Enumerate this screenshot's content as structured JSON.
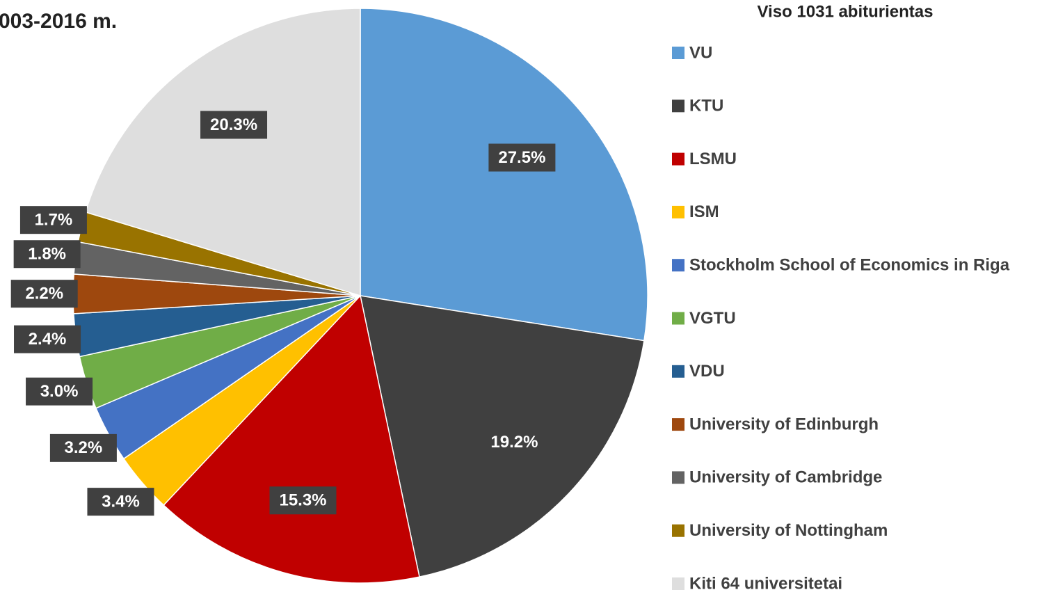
{
  "chart_data": {
    "type": "pie",
    "title": "003-2016 m.",
    "legend_title": "Viso 1031 abiturientas",
    "legend": "right",
    "categories": [
      "VU",
      "KTU",
      "LSMU",
      "ISM",
      "Stockholm School of Economics in Riga",
      "VGTU",
      "VDU",
      "University of Edinburgh",
      "University of Cambridge",
      "University of Nottingham",
      "Kiti 64 universitetai"
    ],
    "values": [
      27.5,
      19.2,
      15.3,
      3.4,
      3.2,
      3.0,
      2.4,
      2.2,
      1.8,
      1.7,
      20.3
    ],
    "value_labels": [
      "27.5%",
      "19.2%",
      "15.3%",
      "3.4%",
      "3.2%",
      "3.0%",
      "2.4%",
      "2.2%",
      "1.8%",
      "1.7%",
      "20.3%"
    ],
    "colors": [
      "#5b9bd5",
      "#404040",
      "#c00000",
      "#ffc000",
      "#4472c4",
      "#70ad47",
      "#255e91",
      "#9e480e",
      "#636363",
      "#997300",
      "#dedede"
    ]
  }
}
